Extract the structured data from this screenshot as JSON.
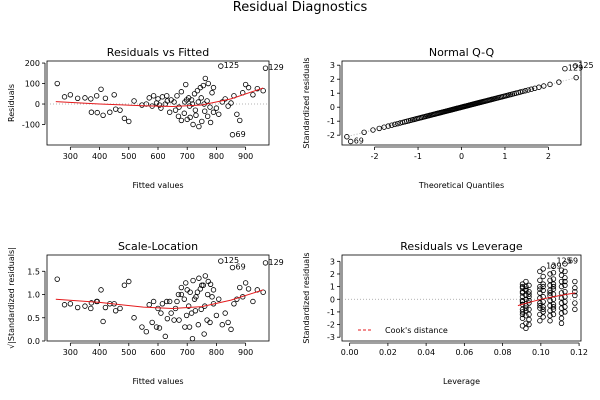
{
  "figure": {
    "title": "Residual Diagnostics"
  },
  "chart_data": [
    {
      "type": "scatter",
      "title": "Residuals vs Fitted",
      "xlabel": "Fitted values",
      "ylabel": "Residuals",
      "xlim": [
        220,
        980
      ],
      "ylim": [
        -200,
        210
      ],
      "xticks": [
        300,
        400,
        500,
        600,
        700,
        800,
        900
      ],
      "yticks": [
        -100,
        0,
        100,
        200
      ],
      "reference_line": {
        "y": 0,
        "style": "dotted"
      },
      "smooth": [
        [
          250,
          12
        ],
        [
          400,
          0
        ],
        [
          550,
          -8
        ],
        [
          650,
          -12
        ],
        [
          750,
          -5
        ],
        [
          850,
          25
        ],
        [
          960,
          78
        ]
      ],
      "points": [
        [
          255,
          100
        ],
        [
          280,
          35
        ],
        [
          300,
          45
        ],
        [
          325,
          28
        ],
        [
          350,
          30
        ],
        [
          370,
          25
        ],
        [
          390,
          40
        ],
        [
          405,
          72
        ],
        [
          420,
          28
        ],
        [
          450,
          45
        ],
        [
          372,
          -40
        ],
        [
          392,
          -42
        ],
        [
          412,
          -55
        ],
        [
          435,
          -40
        ],
        [
          455,
          -25
        ],
        [
          470,
          -30
        ],
        [
          485,
          -70
        ],
        [
          500,
          -85
        ],
        [
          518,
          15
        ],
        [
          545,
          -5
        ],
        [
          570,
          30
        ],
        [
          585,
          40
        ],
        [
          600,
          25
        ],
        [
          615,
          35
        ],
        [
          630,
          40
        ],
        [
          645,
          20
        ],
        [
          560,
          0
        ],
        [
          580,
          -10
        ],
        [
          595,
          5
        ],
        [
          610,
          -20
        ],
        [
          625,
          0
        ],
        [
          640,
          -40
        ],
        [
          655,
          10
        ],
        [
          665,
          40
        ],
        [
          680,
          60
        ],
        [
          695,
          95
        ],
        [
          705,
          30
        ],
        [
          715,
          20
        ],
        [
          725,
          50
        ],
        [
          735,
          65
        ],
        [
          745,
          80
        ],
        [
          755,
          90
        ],
        [
          762,
          125
        ],
        [
          772,
          100
        ],
        [
          785,
          55
        ],
        [
          790,
          80
        ],
        [
          660,
          -30
        ],
        [
          670,
          -60
        ],
        [
          680,
          -80
        ],
        [
          690,
          -45
        ],
        [
          700,
          -75
        ],
        [
          710,
          -65
        ],
        [
          720,
          -100
        ],
        [
          730,
          -55
        ],
        [
          740,
          -110
        ],
        [
          750,
          -85
        ],
        [
          760,
          -35
        ],
        [
          770,
          -60
        ],
        [
          780,
          -90
        ],
        [
          790,
          -40
        ],
        [
          800,
          -20
        ],
        [
          808,
          -50
        ],
        [
          820,
          10
        ],
        [
          830,
          25
        ],
        [
          840,
          -10
        ],
        [
          850,
          5
        ],
        [
          860,
          40
        ],
        [
          870,
          -50
        ],
        [
          880,
          -80
        ],
        [
          890,
          55
        ],
        [
          900,
          95
        ],
        [
          910,
          80
        ],
        [
          925,
          45
        ],
        [
          940,
          75
        ],
        [
          960,
          65
        ],
        [
          698,
          20
        ],
        [
          708,
          -10
        ],
        [
          718,
          0
        ],
        [
          728,
          -30
        ],
        [
          738,
          10
        ],
        [
          748,
          30
        ],
        [
          758,
          0
        ],
        [
          768,
          15
        ],
        [
          778,
          -15
        ],
        [
          605,
          -5
        ],
        [
          632,
          15
        ],
        [
          672,
          -15
        ],
        [
          692,
          10
        ],
        [
          815,
          185
        ],
        [
          855,
          -150
        ],
        [
          968,
          175
        ]
      ],
      "labels": [
        {
          "x": 815,
          "y": 185,
          "text": "125"
        },
        {
          "x": 855,
          "y": -150,
          "text": "69"
        },
        {
          "x": 968,
          "y": 175,
          "text": "129"
        }
      ]
    },
    {
      "type": "scatter",
      "title": "Normal Q-Q",
      "xlabel": "Theoretical Quantiles",
      "ylabel": "Standardized residuals",
      "xlim": [
        -2.75,
        2.75
      ],
      "ylim": [
        -2.7,
        3.3
      ],
      "xticks": [
        -2,
        -1,
        0,
        1,
        2
      ],
      "yticks": [
        -2,
        -1,
        0,
        1,
        2,
        3
      ],
      "reference_line": {
        "from": [
          -2.75,
          -2.2
        ],
        "to": [
          2.75,
          2.2
        ],
        "style": "dotted"
      },
      "qq_generated": {
        "n": 120,
        "sd": 0.8
      },
      "labels": [
        {
          "x": -2.55,
          "y": -2.45,
          "text": "69"
        },
        {
          "x": 2.38,
          "y": 2.75,
          "text": "129"
        },
        {
          "x": 2.62,
          "y": 2.95,
          "text": "125"
        }
      ]
    },
    {
      "type": "scatter",
      "title": "Scale-Location",
      "xlabel": "Fitted values",
      "ylabel": "√|Standardized residuals|",
      "xlim": [
        220,
        980
      ],
      "ylim": [
        0,
        1.85
      ],
      "xticks": [
        300,
        400,
        500,
        600,
        700,
        800,
        900
      ],
      "yticks": [
        0.0,
        0.5,
        1.0,
        1.5
      ],
      "smooth": [
        [
          250,
          0.9
        ],
        [
          400,
          0.83
        ],
        [
          550,
          0.73
        ],
        [
          650,
          0.7
        ],
        [
          750,
          0.74
        ],
        [
          850,
          0.88
        ],
        [
          960,
          1.1
        ]
      ],
      "points": [
        [
          255,
          1.33
        ],
        [
          280,
          0.78
        ],
        [
          300,
          0.8
        ],
        [
          325,
          0.72
        ],
        [
          350,
          0.75
        ],
        [
          370,
          0.7
        ],
        [
          390,
          0.85
        ],
        [
          405,
          1.1
        ],
        [
          420,
          0.72
        ],
        [
          450,
          0.8
        ],
        [
          372,
          0.82
        ],
        [
          392,
          0.85
        ],
        [
          412,
          0.42
        ],
        [
          435,
          0.8
        ],
        [
          455,
          0.65
        ],
        [
          470,
          0.7
        ],
        [
          485,
          1.2
        ],
        [
          500,
          1.28
        ],
        [
          518,
          0.5
        ],
        [
          545,
          0.3
        ],
        [
          570,
          0.78
        ],
        [
          585,
          0.85
        ],
        [
          600,
          0.7
        ],
        [
          615,
          0.8
        ],
        [
          630,
          0.85
        ],
        [
          645,
          0.6
        ],
        [
          560,
          0.2
        ],
        [
          580,
          0.4
        ],
        [
          595,
          0.3
        ],
        [
          610,
          0.6
        ],
        [
          625,
          0.1
        ],
        [
          640,
          0.85
        ],
        [
          655,
          0.45
        ],
        [
          665,
          0.85
        ],
        [
          680,
          1.0
        ],
        [
          695,
          1.25
        ],
        [
          705,
          0.75
        ],
        [
          715,
          0.6
        ],
        [
          725,
          0.9
        ],
        [
          735,
          1.05
        ],
        [
          745,
          1.12
        ],
        [
          755,
          1.2
        ],
        [
          762,
          1.4
        ],
        [
          772,
          1.28
        ],
        [
          785,
          0.95
        ],
        [
          790,
          1.1
        ],
        [
          660,
          0.7
        ],
        [
          670,
          1.0
        ],
        [
          680,
          1.15
        ],
        [
          690,
          0.9
        ],
        [
          700,
          1.1
        ],
        [
          710,
          1.05
        ],
        [
          720,
          1.3
        ],
        [
          730,
          0.95
        ],
        [
          740,
          1.35
        ],
        [
          750,
          1.2
        ],
        [
          760,
          0.75
        ],
        [
          770,
          1.0
        ],
        [
          780,
          1.22
        ],
        [
          790,
          0.8
        ],
        [
          800,
          0.55
        ],
        [
          808,
          0.9
        ],
        [
          820,
          0.35
        ],
        [
          830,
          0.6
        ],
        [
          840,
          0.4
        ],
        [
          850,
          0.25
        ],
        [
          860,
          0.8
        ],
        [
          870,
          0.9
        ],
        [
          880,
          1.15
        ],
        [
          890,
          0.95
        ],
        [
          900,
          1.25
        ],
        [
          910,
          1.12
        ],
        [
          925,
          0.85
        ],
        [
          940,
          1.1
        ],
        [
          960,
          1.05
        ],
        [
          698,
          0.55
        ],
        [
          708,
          0.3
        ],
        [
          718,
          0.05
        ],
        [
          728,
          0.65
        ],
        [
          738,
          0.35
        ],
        [
          748,
          0.68
        ],
        [
          758,
          0.15
        ],
        [
          768,
          0.45
        ],
        [
          778,
          0.4
        ],
        [
          605,
          0.28
        ],
        [
          632,
          0.48
        ],
        [
          672,
          0.45
        ],
        [
          692,
          0.3
        ],
        [
          815,
          1.72
        ],
        [
          855,
          1.58
        ],
        [
          968,
          1.68
        ]
      ],
      "labels": [
        {
          "x": 815,
          "y": 1.72,
          "text": "125"
        },
        {
          "x": 855,
          "y": 1.58,
          "text": "69"
        },
        {
          "x": 968,
          "y": 1.68,
          "text": "129"
        }
      ]
    },
    {
      "type": "scatter",
      "title": "Residuals vs Leverage",
      "xlabel": "Leverage",
      "ylabel": "Standardized residuals",
      "xlim": [
        -0.004,
        0.121
      ],
      "ylim": [
        -3.3,
        3.5
      ],
      "xticks": [
        0.0,
        0.02,
        0.04,
        0.06,
        0.08,
        0.1,
        0.12
      ],
      "yticks": [
        -3,
        -2,
        -1,
        0,
        1,
        2,
        3
      ],
      "reference_line": {
        "y": 0,
        "style": "dotted"
      },
      "smooth": [
        [
          0.088,
          -0.5
        ],
        [
          0.095,
          -0.2
        ],
        [
          0.1,
          0.0
        ],
        [
          0.105,
          0.15
        ],
        [
          0.11,
          0.3
        ],
        [
          0.118,
          0.5
        ]
      ],
      "columns": [
        {
          "x": 0.0904,
          "ys": [
            1.2,
            0.9,
            0.5,
            0.2,
            -0.1,
            -0.4,
            -0.8,
            -1.2,
            -1.5,
            -2.1,
            1.0,
            0.6,
            -0.2,
            -1.0
          ]
        },
        {
          "x": 0.0922,
          "ys": [
            1.4,
            1.0,
            0.7,
            0.3,
            0.0,
            -0.5,
            -0.9,
            -1.3,
            -1.9,
            -2.3,
            0.8,
            -0.7
          ]
        },
        {
          "x": 0.0938,
          "ys": [
            1.1,
            0.6,
            0.2,
            -0.3,
            -0.8,
            -1.2,
            -1.6,
            -2.0,
            0.4,
            -0.1
          ]
        },
        {
          "x": 0.0995,
          "ys": [
            2.2,
            1.5,
            1.0,
            0.5,
            0.1,
            -0.3,
            -0.7,
            -1.2,
            -1.7,
            0.8,
            -0.5
          ]
        },
        {
          "x": 0.1012,
          "ys": [
            2.4,
            1.8,
            1.2,
            0.7,
            0.2,
            -0.2,
            -0.6,
            -1.0,
            -1.4,
            1.0,
            -0.8
          ]
        },
        {
          "x": 0.1048,
          "ys": [
            2.0,
            1.5,
            1.1,
            0.7,
            0.3,
            -0.1,
            -0.5,
            -0.9,
            -1.3,
            -1.7,
            0.5
          ]
        },
        {
          "x": 0.1066,
          "ys": [
            2.6,
            2.1,
            1.6,
            1.2,
            0.8,
            0.4,
            0.0,
            -0.4,
            -0.8,
            -1.2,
            1.0,
            -0.6
          ]
        },
        {
          "x": 0.1108,
          "ys": [
            2.3,
            1.9,
            1.4,
            1.0,
            0.5,
            0.1,
            -0.3,
            -0.7,
            -1.1,
            -1.5,
            -1.9
          ]
        },
        {
          "x": 0.1126,
          "ys": [
            2.8,
            2.2,
            1.7,
            1.1,
            0.6,
            0.2,
            -0.2,
            -0.6,
            -1.0,
            1.4
          ]
        },
        {
          "x": 0.1178,
          "ys": [
            1.4,
            0.9,
            0.3,
            -0.3,
            -0.8,
            0.6
          ]
        }
      ],
      "labels": [
        {
          "x": 0.1066,
          "y": 3.0,
          "text": "125"
        },
        {
          "x": 0.1126,
          "y": 3.0,
          "text": "69"
        },
        {
          "x": 0.1012,
          "y": 2.6,
          "text": "129"
        }
      ],
      "legend": {
        "text": "Cook's distance",
        "position": "bottom-left"
      }
    }
  ]
}
